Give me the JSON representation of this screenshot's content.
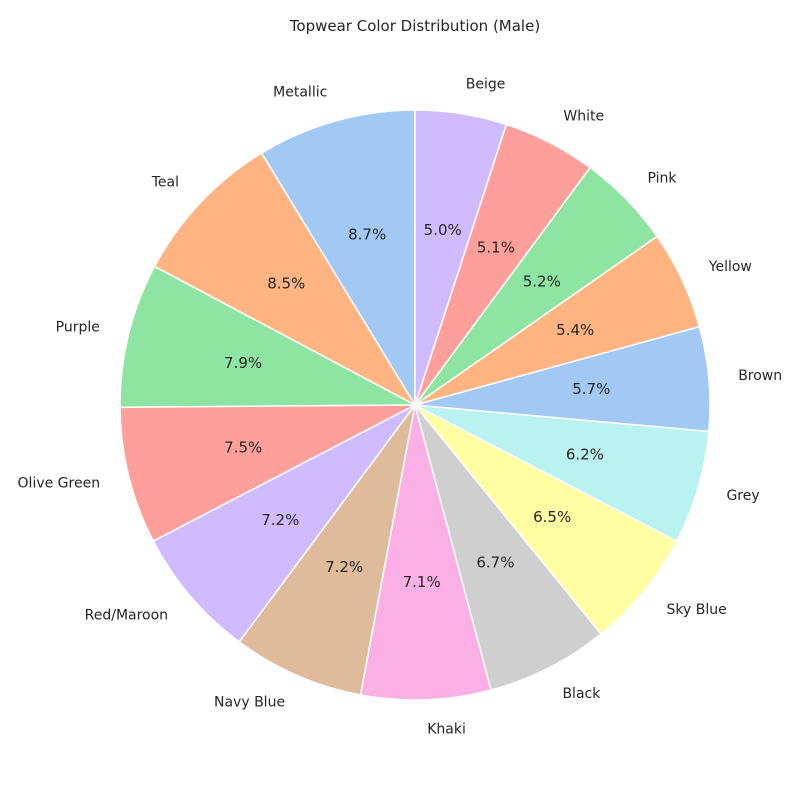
{
  "chart_data": {
    "type": "pie",
    "title": "Topwear Color Distribution (Male)",
    "start_angle_deg": 90,
    "direction": "counterclockwise",
    "slices": [
      {
        "label": "Metallic",
        "percent": 8.7,
        "pct_text": "8.7%",
        "color": "#a1c9f4"
      },
      {
        "label": "Teal",
        "percent": 8.5,
        "pct_text": "8.5%",
        "color": "#ffb482"
      },
      {
        "label": "Purple",
        "percent": 7.9,
        "pct_text": "7.9%",
        "color": "#8de5a1"
      },
      {
        "label": "Olive Green",
        "percent": 7.5,
        "pct_text": "7.5%",
        "color": "#ff9f9b"
      },
      {
        "label": "Red/Maroon",
        "percent": 7.2,
        "pct_text": "7.2%",
        "color": "#d0bbff"
      },
      {
        "label": "Navy Blue",
        "percent": 7.2,
        "pct_text": "7.2%",
        "color": "#debb9b"
      },
      {
        "label": "Khaki",
        "percent": 7.1,
        "pct_text": "7.1%",
        "color": "#fab0e4"
      },
      {
        "label": "Black",
        "percent": 6.7,
        "pct_text": "6.7%",
        "color": "#cfcfcf"
      },
      {
        "label": "Sky Blue",
        "percent": 6.5,
        "pct_text": "6.5%",
        "color": "#fffea3"
      },
      {
        "label": "Grey",
        "percent": 6.2,
        "pct_text": "6.2%",
        "color": "#b9f2f0"
      },
      {
        "label": "Brown",
        "percent": 5.7,
        "pct_text": "5.7%",
        "color": "#a1c9f4"
      },
      {
        "label": "Yellow",
        "percent": 5.4,
        "pct_text": "5.4%",
        "color": "#ffb482"
      },
      {
        "label": "Pink",
        "percent": 5.2,
        "pct_text": "5.2%",
        "color": "#8de5a1"
      },
      {
        "label": "White",
        "percent": 5.1,
        "pct_text": "5.1%",
        "color": "#ff9f9b"
      },
      {
        "label": "Beige",
        "percent": 5.0,
        "pct_text": "5.0%",
        "color": "#d0bbff"
      }
    ]
  }
}
